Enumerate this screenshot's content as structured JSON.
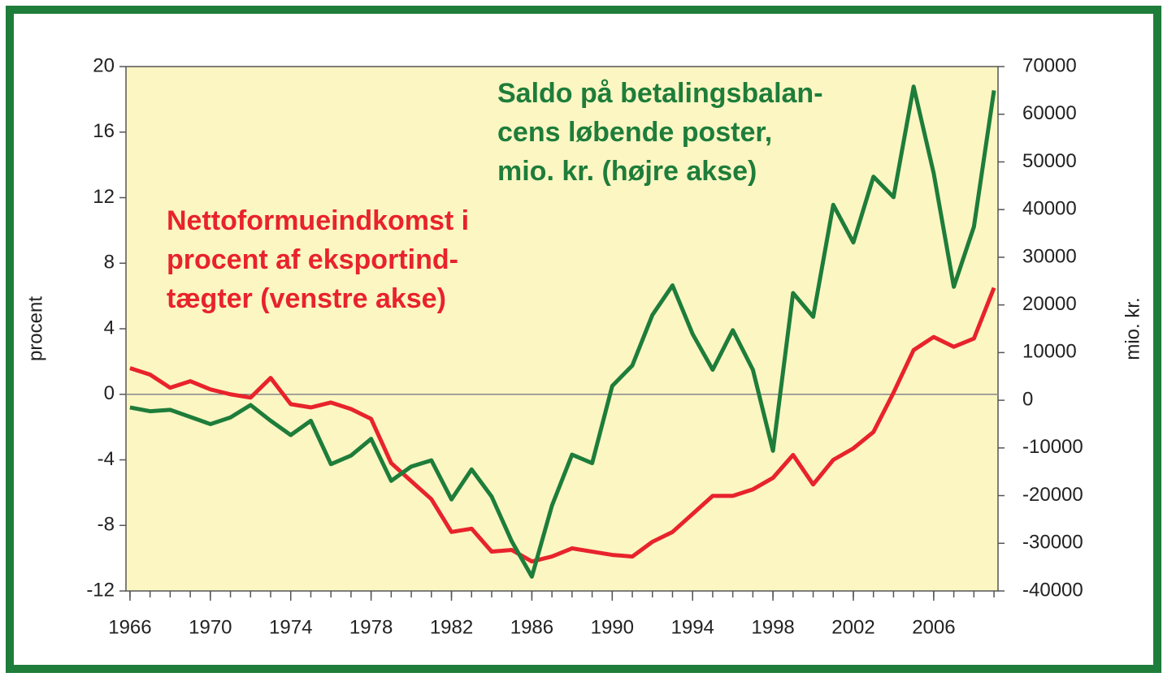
{
  "chart_data": {
    "type": "line",
    "x": [
      1966,
      1967,
      1968,
      1969,
      1970,
      1971,
      1972,
      1973,
      1974,
      1975,
      1976,
      1977,
      1978,
      1979,
      1980,
      1981,
      1982,
      1983,
      1984,
      1985,
      1986,
      1987,
      1988,
      1989,
      1990,
      1991,
      1992,
      1993,
      1994,
      1995,
      1996,
      1997,
      1998,
      1999,
      2000,
      2001,
      2002,
      2003,
      2004,
      2005,
      2006,
      2007,
      2008,
      2009
    ],
    "xlim": [
      1965.8,
      2009.2
    ],
    "xticks": [
      1966,
      1970,
      1974,
      1978,
      1982,
      1986,
      1990,
      1994,
      1998,
      2002,
      2006
    ],
    "ylim": [
      -12,
      20
    ],
    "yticks": [
      -12,
      -8,
      -4,
      0,
      4,
      8,
      12,
      16,
      20
    ],
    "y2lim": [
      -40000,
      70000
    ],
    "y2ticks": [
      -40000,
      -30000,
      -20000,
      -10000,
      0,
      10000,
      20000,
      30000,
      40000,
      50000,
      60000,
      70000
    ],
    "ylabel": "procent",
    "y2label": "mio. kr.",
    "zero_line": true,
    "grid": false,
    "series": [
      {
        "name": [
          "Nettoformueindkomst i",
          "procent af eksportind-",
          "tægter (venstre akse)"
        ],
        "color": "#e8232b",
        "axis": "y",
        "values": [
          1.6,
          1.2,
          0.4,
          0.8,
          0.3,
          0,
          -0.2,
          1.0,
          -0.6,
          -0.8,
          -0.5,
          -0.9,
          -1.5,
          -4.2,
          -5.3,
          -6.4,
          -8.4,
          -8.2,
          -9.6,
          -9.5,
          -10.2,
          -9.9,
          -9.4,
          -9.6,
          -9.8,
          -9.9,
          -9.0,
          -8.4,
          -7.3,
          -6.2,
          -6.2,
          -5.8,
          -5.1,
          -3.7,
          -5.5,
          -4.0,
          -3.3,
          -2.3,
          0.1,
          2.7,
          3.5,
          2.9,
          3.4,
          6.5
        ]
      },
      {
        "name": [
          "Saldo på betalingsbalan-",
          "cens løbende poster,",
          "mio. kr. (højre akse)"
        ],
        "color": "#1e7d3a",
        "axis": "y2",
        "values": [
          -1500,
          -2300,
          -2000,
          -3500,
          -5000,
          -3600,
          -1000,
          -4300,
          -7300,
          -4300,
          -13400,
          -11600,
          -8100,
          -16900,
          -13900,
          -12600,
          -20800,
          -14500,
          -20200,
          -29600,
          -37000,
          -22100,
          -11400,
          -13200,
          3000,
          7300,
          17900,
          24100,
          13900,
          6400,
          14700,
          6400,
          -10600,
          22500,
          17500,
          41000,
          33100,
          46900,
          42600,
          65800,
          47600,
          23800,
          36400,
          65000
        ]
      }
    ]
  }
}
